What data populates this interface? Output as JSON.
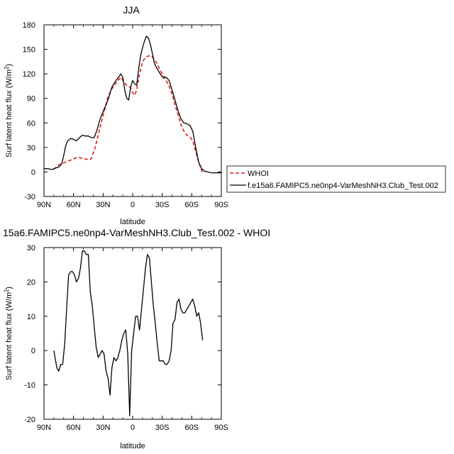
{
  "chart_data": [
    {
      "type": "line",
      "title": "JJA",
      "xlabel": "latitude",
      "ylabel": "Surf latent heat flux (W/m",
      "ylabel_sup": "2",
      "ylabel_close": ")",
      "xlim": [
        90,
        -90
      ],
      "ylim": [
        -30,
        180
      ],
      "x_ticks": [
        90,
        60,
        30,
        0,
        -30,
        -60,
        -90
      ],
      "x_tick_labels": [
        "90N",
        "60N",
        "30N",
        "0",
        "30S",
        "60S",
        "90S"
      ],
      "y_ticks": [
        -30,
        0,
        30,
        60,
        90,
        120,
        150,
        180
      ],
      "y_tick_labels": [
        "-30",
        "0",
        "30",
        "60",
        "90",
        "120",
        "150",
        "180"
      ],
      "legend_position": "right",
      "series": [
        {
          "name": "WHOI",
          "color": "#e41a1c",
          "dash": true,
          "x": [
            80,
            76,
            72,
            68,
            64,
            60,
            56,
            52,
            48,
            45,
            42,
            38,
            35,
            32,
            28,
            25,
            22,
            18,
            15,
            12,
            9,
            6,
            3,
            1,
            0,
            -2,
            -4,
            -7,
            -10,
            -13,
            -16,
            -19,
            -22,
            -25,
            -28,
            -31,
            -34,
            -37,
            -40,
            -43,
            -46,
            -49,
            -52,
            -55,
            -58,
            -61,
            -64,
            -67,
            -70,
            -72
          ],
          "y": [
            3,
            8,
            10,
            12,
            14,
            16,
            18,
            17,
            16,
            15,
            16,
            30,
            45,
            60,
            78,
            92,
            100,
            107,
            112,
            116,
            110,
            106,
            104,
            100,
            97,
            94,
            100,
            120,
            135,
            140,
            142,
            142,
            138,
            132,
            124,
            118,
            112,
            105,
            95,
            82,
            70,
            58,
            50,
            45,
            43,
            38,
            25,
            12,
            2,
            -2
          ]
        },
        {
          "name": "f.e15a6.FAMIPC5.ne0np4-VarMeshNH3.Club_Test.002",
          "color": "#000000",
          "dash": false,
          "x": [
            90,
            86,
            82,
            78,
            75,
            72,
            70,
            68,
            66,
            63,
            60,
            57,
            54,
            51,
            48,
            45,
            42,
            39,
            36,
            33,
            30,
            27,
            24,
            21,
            18,
            15,
            12,
            10,
            8,
            6,
            4,
            2,
            0,
            -2,
            -4,
            -6,
            -8,
            -10,
            -12,
            -14,
            -16,
            -18,
            -20,
            -22,
            -25,
            -28,
            -31,
            -34,
            -37,
            -40,
            -43,
            -46,
            -49,
            -52,
            -55,
            -58,
            -61,
            -64,
            -67,
            -70,
            -73,
            -76,
            -80,
            -85,
            -90
          ],
          "y": [
            4,
            4,
            3,
            5,
            6,
            10,
            20,
            32,
            38,
            41,
            40,
            38,
            42,
            45,
            44,
            44,
            42,
            42,
            52,
            65,
            74,
            82,
            92,
            104,
            110,
            115,
            120,
            116,
            100,
            90,
            88,
            104,
            112,
            108,
            106,
            125,
            142,
            152,
            160,
            166,
            164,
            156,
            145,
            133,
            126,
            120,
            115,
            116,
            112,
            100,
            88,
            75,
            65,
            60,
            59,
            57,
            50,
            30,
            12,
            4,
            1,
            0,
            -1,
            -1,
            -1
          ]
        }
      ]
    },
    {
      "type": "line",
      "title": "15a6.FAMIPC5.ne0np4-VarMeshNH3.Club_Test.002 - WHOI",
      "xlabel": "latitude",
      "ylabel": "Surf latent heat flux (W/m",
      "ylabel_sup": "2",
      "ylabel_close": ")",
      "xlim": [
        90,
        -90
      ],
      "ylim": [
        -20,
        30
      ],
      "x_ticks": [
        90,
        60,
        30,
        0,
        -30,
        -60,
        -90
      ],
      "x_tick_labels": [
        "90N",
        "60N",
        "30N",
        "0",
        "30S",
        "60S",
        "90S"
      ],
      "y_ticks": [
        -20,
        -10,
        0,
        10,
        20,
        30
      ],
      "y_tick_labels": [
        "-20",
        "-10",
        "0",
        "10",
        "20",
        "30"
      ],
      "series": [
        {
          "color": "#000000",
          "x": [
            80,
            77,
            75,
            73,
            71,
            69,
            67,
            65,
            63,
            61,
            59,
            57,
            55,
            53,
            51,
            49,
            47,
            45,
            43,
            41,
            39,
            37,
            35,
            33,
            31,
            29,
            27,
            25,
            23,
            21,
            19,
            17,
            15,
            13,
            11,
            9,
            7,
            5,
            3,
            1,
            -1,
            -3,
            -5,
            -7,
            -9,
            -11,
            -13,
            -15,
            -17,
            -19,
            -21,
            -23,
            -25,
            -27,
            -29,
            -31,
            -33,
            -35,
            -37,
            -39,
            -41,
            -43,
            -45,
            -47,
            -49,
            -51,
            -53,
            -55,
            -57,
            -59,
            -61,
            -63,
            -65,
            -67,
            -69,
            -71
          ],
          "y": [
            0,
            -5,
            -6,
            -4,
            -4,
            2,
            12,
            22,
            23,
            23,
            22,
            20,
            21,
            24,
            29,
            29,
            28,
            28,
            17,
            13,
            7,
            1,
            -2,
            -1,
            0,
            -1,
            -6,
            -8,
            -13,
            -5,
            -2,
            -3,
            -2,
            0,
            3,
            5,
            6,
            -1,
            -19,
            0,
            5,
            10,
            10,
            6,
            12,
            18,
            24,
            28,
            27,
            20,
            13,
            8,
            2,
            -3,
            -3,
            -3,
            -4,
            -4,
            -3,
            0,
            8,
            9,
            14,
            15,
            12,
            11,
            11,
            12,
            13,
            14,
            15,
            13,
            10,
            11,
            8,
            3
          ]
        }
      ]
    }
  ],
  "legend": {
    "whoi_label": "WHOI",
    "model_label": "f.e15a6.FAMIPC5.ne0np4-VarMeshNH3.Club_Test.002"
  }
}
